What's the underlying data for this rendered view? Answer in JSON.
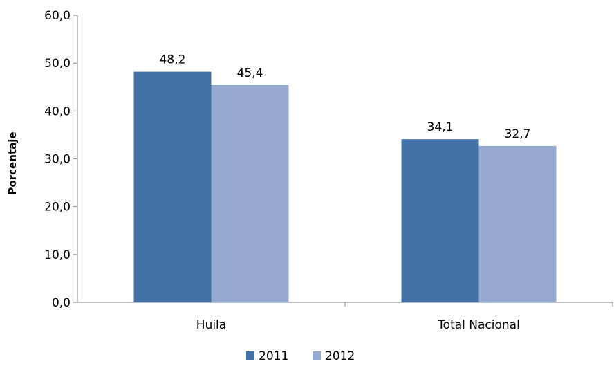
{
  "chart_data": {
    "type": "bar",
    "title": "",
    "xlabel": "",
    "ylabel": "Porcentaje",
    "categories": [
      "Huila",
      "Total Nacional"
    ],
    "series": [
      {
        "name": "2011",
        "values": [
          48.2,
          34.1
        ],
        "labels": [
          "48,2",
          "34,1"
        ],
        "color": "#4472a8"
      },
      {
        "name": "2012",
        "values": [
          45.4,
          32.7
        ],
        "labels": [
          "45,4",
          "32,7"
        ],
        "color": "#95a9d1"
      }
    ],
    "ylim": [
      0,
      60
    ],
    "yticks": [
      0,
      10,
      20,
      30,
      40,
      50,
      60
    ],
    "ytick_labels": [
      "0,0",
      "10,0",
      "20,0",
      "30,0",
      "40,0",
      "50,0",
      "60,0"
    ],
    "grid": false,
    "legend_position": "bottom"
  }
}
